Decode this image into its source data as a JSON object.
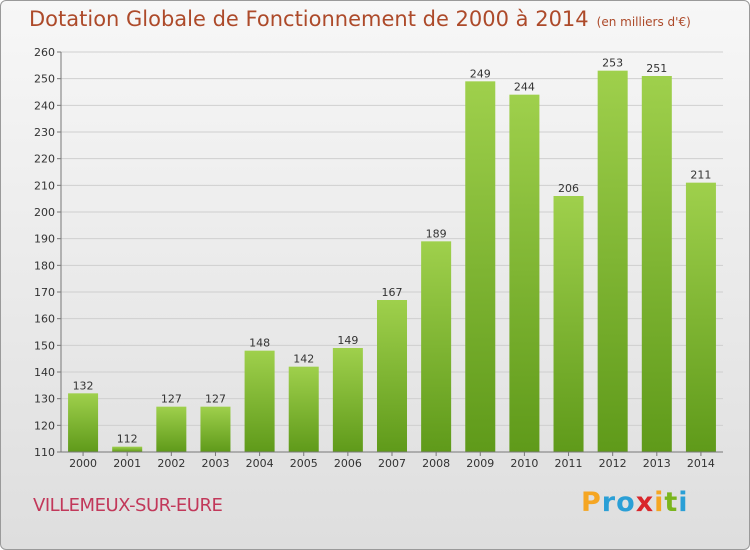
{
  "title": {
    "main": "Dotation Globale de Fonctionnement de 2000 à 2014",
    "unit": "(en milliers d'€)"
  },
  "commune": "VILLEMEUX-SUR-EURE",
  "brand": "Proxiti",
  "colors": {
    "title": "#ad4a2a",
    "commune": "#c2385a",
    "bar_top": "#9fd04c",
    "bar_bottom": "#5f9a1a"
  },
  "chart_data": {
    "type": "bar",
    "categories": [
      "2000",
      "2001",
      "2002",
      "2003",
      "2004",
      "2005",
      "2006",
      "2007",
      "2008",
      "2009",
      "2010",
      "2011",
      "2012",
      "2013",
      "2014"
    ],
    "values": [
      132,
      112,
      127,
      127,
      148,
      142,
      149,
      167,
      189,
      249,
      244,
      206,
      253,
      251,
      211
    ],
    "ylim": [
      110,
      260
    ],
    "yticks": [
      110,
      120,
      130,
      140,
      150,
      160,
      170,
      180,
      190,
      200,
      210,
      220,
      230,
      240,
      250,
      260
    ],
    "grid": true
  }
}
